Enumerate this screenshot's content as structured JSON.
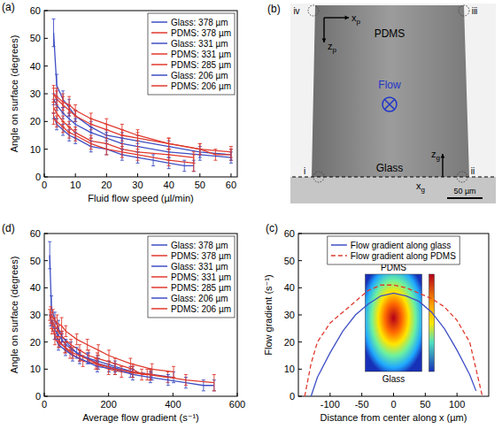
{
  "chart_data": [
    {
      "type": "line",
      "title": "(a)",
      "x_label": "Fluid flow speed (µl/min)",
      "y_label": "Angle on surface (degrees)",
      "xlim": [
        0,
        62
      ],
      "xticks": [
        0,
        10,
        20,
        30,
        40,
        50,
        60
      ],
      "ylim": [
        0,
        60
      ],
      "yticks": [
        0,
        10,
        20,
        30,
        40,
        50,
        60
      ],
      "grid": false,
      "legend": "top-right",
      "series": [
        {
          "name": "Glass: 378 µm",
          "color": "#3f4fc4",
          "line_style": "solid",
          "x": [
            3,
            4,
            6,
            8,
            10,
            15,
            20,
            25,
            30,
            40,
            50,
            60
          ],
          "values": [
            52,
            33,
            28,
            25,
            22,
            18,
            15,
            14,
            13,
            11,
            9,
            8
          ],
          "errors": [
            5,
            4,
            3,
            3,
            2,
            2,
            2,
            2,
            2,
            2,
            2,
            2
          ]
        },
        {
          "name": "PDMS: 378 µm",
          "color": "#e03a2e",
          "line_style": "solid",
          "x": [
            3,
            4,
            6,
            8,
            10,
            15,
            20,
            25,
            30,
            40,
            50,
            55,
            60
          ],
          "values": [
            30,
            28,
            26,
            24,
            22,
            19,
            17,
            15,
            14,
            12,
            10,
            8,
            8
          ],
          "errors": [
            2,
            3,
            3,
            2,
            2,
            2,
            2,
            2,
            2,
            2,
            2,
            2,
            2
          ]
        },
        {
          "name": "Glass: 331 µm",
          "color": "#3f4fc4",
          "line_style": "solid",
          "x": [
            3,
            4,
            6,
            8,
            10,
            15,
            20,
            25,
            30,
            40,
            50,
            60
          ],
          "values": [
            28,
            26,
            23,
            21,
            19,
            16,
            14,
            12,
            11,
            9,
            8,
            7
          ],
          "errors": [
            2,
            2,
            2,
            2,
            2,
            2,
            2,
            2,
            2,
            2,
            2,
            2
          ]
        },
        {
          "name": "PDMS: 331 µm",
          "color": "#e03a2e",
          "line_style": "solid",
          "x": [
            3,
            4,
            6,
            8,
            10,
            15,
            20,
            25,
            30,
            40,
            50,
            60
          ],
          "values": [
            30,
            29,
            27,
            26,
            24,
            21,
            19,
            17,
            15,
            12,
            10,
            9
          ],
          "errors": [
            3,
            3,
            3,
            3,
            2,
            2,
            2,
            2,
            2,
            2,
            2,
            2
          ]
        },
        {
          "name": "PDMS: 285 µm",
          "color": "#e03a2e",
          "line_style": "solid",
          "x": [
            3,
            4,
            6,
            8,
            10,
            15,
            20,
            25,
            30,
            40,
            48
          ],
          "values": [
            25,
            23,
            20,
            18,
            16,
            13,
            12,
            10,
            9,
            8,
            7
          ],
          "errors": [
            2,
            2,
            2,
            2,
            2,
            2,
            2,
            2,
            2,
            2,
            2
          ]
        },
        {
          "name": "Glass: 206 µm",
          "color": "#3f4fc4",
          "line_style": "solid",
          "x": [
            3,
            4,
            6,
            8,
            10,
            15,
            20,
            25,
            30,
            35,
            40,
            45,
            48
          ],
          "values": [
            22,
            19,
            17,
            15,
            14,
            11,
            10,
            8,
            7,
            6,
            5,
            4,
            4
          ],
          "errors": [
            1,
            2,
            2,
            2,
            2,
            2,
            2,
            2,
            2,
            2,
            2,
            2,
            2
          ]
        },
        {
          "name": "PDMS: 206 µm",
          "color": "#e03a2e",
          "line_style": "solid",
          "x": [
            3,
            4,
            6,
            8,
            10,
            15,
            20,
            25,
            30,
            40,
            48
          ],
          "values": [
            21,
            20,
            18,
            16,
            15,
            12,
            10,
            9,
            8,
            6,
            5
          ],
          "errors": [
            2,
            2,
            2,
            2,
            2,
            2,
            2,
            2,
            2,
            2,
            3
          ]
        }
      ]
    },
    {
      "type": "line",
      "title": "(d)",
      "x_label": "Average flow gradient (s⁻¹)",
      "y_label": "Angle on surface (degrees)",
      "xlim": [
        0,
        600
      ],
      "xticks": [
        0,
        200,
        400,
        600
      ],
      "ylim": [
        0,
        60
      ],
      "yticks": [
        0,
        10,
        20,
        30,
        40,
        50,
        60
      ],
      "grid": false,
      "legend": "top-right",
      "series": [
        {
          "name": "Glass: 378 µm",
          "color": "#3f4fc4",
          "line_style": "solid",
          "x": [
            17,
            22,
            33,
            44,
            55,
            83,
            110,
            138,
            165,
            220,
            275,
            330
          ],
          "values": [
            52,
            33,
            28,
            25,
            22,
            18,
            15,
            14,
            13,
            11,
            9,
            8
          ],
          "errors": [
            5,
            4,
            3,
            3,
            2,
            2,
            2,
            2,
            2,
            2,
            2,
            2
          ]
        },
        {
          "name": "PDMS: 378 µm",
          "color": "#e03a2e",
          "line_style": "solid",
          "x": [
            17,
            22,
            33,
            44,
            55,
            83,
            110,
            138,
            165,
            220,
            275,
            303,
            330
          ],
          "values": [
            30,
            28,
            26,
            24,
            22,
            19,
            17,
            15,
            14,
            12,
            10,
            8,
            8
          ],
          "errors": [
            2,
            3,
            3,
            2,
            2,
            2,
            2,
            2,
            2,
            2,
            2,
            2,
            2
          ]
        },
        {
          "name": "Glass: 331 µm",
          "color": "#3f4fc4",
          "line_style": "solid",
          "x": [
            20,
            27,
            40,
            54,
            67,
            101,
            134,
            168,
            201,
            268,
            335,
            402
          ],
          "values": [
            28,
            26,
            23,
            21,
            19,
            16,
            14,
            12,
            11,
            9,
            8,
            7
          ],
          "errors": [
            2,
            2,
            2,
            2,
            2,
            2,
            2,
            2,
            2,
            2,
            2,
            2
          ]
        },
        {
          "name": "PDMS: 331 µm",
          "color": "#e03a2e",
          "line_style": "solid",
          "x": [
            20,
            27,
            40,
            54,
            67,
            101,
            134,
            168,
            201,
            268,
            335,
            402
          ],
          "values": [
            30,
            29,
            27,
            26,
            24,
            21,
            19,
            17,
            15,
            12,
            10,
            9
          ],
          "errors": [
            3,
            3,
            3,
            3,
            2,
            2,
            2,
            2,
            2,
            2,
            2,
            2
          ]
        },
        {
          "name": "PDMS: 285 µm",
          "color": "#e03a2e",
          "line_style": "solid",
          "x": [
            24,
            32,
            48,
            64,
            80,
            120,
            160,
            200,
            240,
            320,
            384
          ],
          "values": [
            25,
            23,
            20,
            18,
            16,
            13,
            12,
            10,
            9,
            8,
            7
          ],
          "errors": [
            2,
            2,
            2,
            2,
            2,
            2,
            2,
            2,
            2,
            2,
            2
          ]
        },
        {
          "name": "Glass: 206 µm",
          "color": "#3f4fc4",
          "line_style": "solid",
          "x": [
            33,
            44,
            66,
            88,
            110,
            165,
            220,
            275,
            330,
            385,
            440,
            495,
            528
          ],
          "values": [
            22,
            19,
            17,
            15,
            14,
            11,
            10,
            8,
            7,
            6,
            5,
            4,
            4
          ],
          "errors": [
            1,
            2,
            2,
            2,
            2,
            2,
            2,
            2,
            2,
            2,
            2,
            2,
            2
          ]
        },
        {
          "name": "PDMS: 206 µm",
          "color": "#e03a2e",
          "line_style": "solid",
          "x": [
            33,
            44,
            66,
            88,
            110,
            165,
            220,
            275,
            330,
            440,
            528
          ],
          "values": [
            21,
            20,
            18,
            16,
            15,
            12,
            10,
            9,
            8,
            6,
            5
          ],
          "errors": [
            2,
            2,
            2,
            2,
            2,
            2,
            2,
            2,
            2,
            2,
            3
          ]
        }
      ]
    },
    {
      "type": "line",
      "title": "(c)",
      "x_label": "Distance from center along x (µm)",
      "y_label": "Flow gradient (s⁻¹)",
      "xlim": [
        -150,
        150
      ],
      "xticks": [
        -100,
        -50,
        0,
        50,
        100
      ],
      "ylim": [
        0,
        60
      ],
      "yticks": [
        0,
        10,
        20,
        30,
        40,
        50,
        60
      ],
      "grid": false,
      "legend": "top",
      "annotations": [
        "PDMS",
        "Glass"
      ],
      "series": [
        {
          "name": "Flow gradient along glass",
          "color": "#3f4fc4",
          "line_style": "solid",
          "x": [
            -130,
            -120,
            -100,
            -80,
            -60,
            -40,
            -20,
            0,
            20,
            40,
            60,
            80,
            100,
            120,
            130
          ],
          "values": [
            0,
            7,
            16,
            24,
            30,
            34,
            37,
            38,
            37,
            35,
            31,
            25,
            17,
            8,
            2
          ]
        },
        {
          "name": "Flow gradient along PDMS",
          "color": "#e03a2e",
          "line_style": "dashed",
          "x": [
            -140,
            -130,
            -120,
            -100,
            -80,
            -60,
            -40,
            -20,
            0,
            20,
            40,
            60,
            80,
            100,
            120,
            130,
            140
          ],
          "values": [
            0,
            12,
            20,
            27,
            31,
            35,
            39,
            41,
            41,
            40,
            38,
            36,
            33,
            28,
            20,
            10,
            0
          ]
        }
      ]
    }
  ],
  "image_b": {
    "title": "(b)",
    "surfaces": [
      "PDMS",
      "Glass"
    ],
    "flow": "Flow",
    "corners": [
      "i",
      "ii",
      "iii",
      "iv"
    ],
    "axes": [
      {
        "text": "x",
        "sub": "p"
      },
      {
        "text": "z",
        "sub": "p"
      },
      {
        "text": "z",
        "sub": "g"
      },
      {
        "text": "x",
        "sub": "g"
      }
    ],
    "scale_bar": "50 µm"
  }
}
